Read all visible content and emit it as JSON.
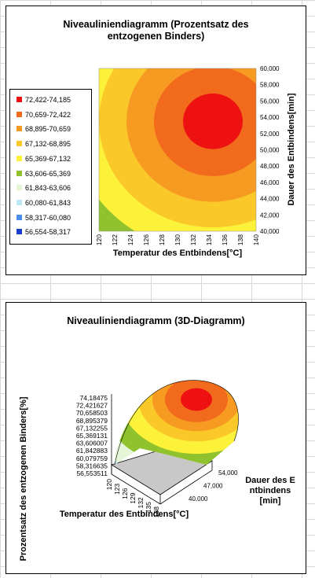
{
  "sheet": {
    "bg": "#ffffff",
    "gridline_color": "#d8d8d8"
  },
  "chart_data": [
    {
      "type": "heatmap",
      "title": "Niveauliniendiagramm (Prozentsatz des entzogenen Binders)",
      "xlabel": "Temperatur des Entbindens[°C]",
      "ylabel": "Dauer des Entbindens[min]",
      "xlim": [
        120,
        140
      ],
      "ylim": [
        40,
        60
      ],
      "x_ticks": [
        "120",
        "122",
        "124",
        "126",
        "128",
        "130",
        "132",
        "134",
        "136",
        "138",
        "140"
      ],
      "y_ticks": [
        "40,000",
        "42,000",
        "44,000",
        "46,000",
        "48,000",
        "50,000",
        "52,000",
        "54,000",
        "56,000",
        "58,000",
        "60,000"
      ],
      "peak": {
        "x": 134.5,
        "y": 53.5,
        "value": 74.18
      },
      "legend_position": "left",
      "levels": [
        {
          "range": "72,422-74,185",
          "color": "#ee1111"
        },
        {
          "range": "70,659-72,422",
          "color": "#f26a1c"
        },
        {
          "range": "68,895-70,659",
          "color": "#f79a22"
        },
        {
          "range": "67,132-68,895",
          "color": "#fbc82a"
        },
        {
          "range": "65,369-67,132",
          "color": "#fdf23a"
        },
        {
          "range": "63,606-65,369",
          "color": "#8fc22c"
        },
        {
          "range": "61,843-63,606",
          "color": "#e4f6d6"
        },
        {
          "range": "60,080-61,843",
          "color": "#bfe6f5"
        },
        {
          "range": "58,317-60,080",
          "color": "#4a8eec"
        },
        {
          "range": "56,554-58,317",
          "color": "#1a3cd0"
        }
      ]
    },
    {
      "type": "surface",
      "title": "Niveauliniendiagramm (3D-Diagramm)",
      "zlabel": "Prozentsatz des entzogenen Binders[%]",
      "xlabel": "Temperatur des Entbindens[°C]",
      "ylabel": "Dauer des Entbindens[min]",
      "z_ticks": [
        "74,18475",
        "72,421627",
        "70,658503",
        "68,895379",
        "67,132255",
        "65,369131",
        "63,606007",
        "61,842883",
        "60,079759",
        "58,316635",
        "56,553511"
      ],
      "x_ticks": [
        "120",
        "123",
        "126",
        "129",
        "132",
        "135",
        "138"
      ],
      "y_ticks": [
        "40,000",
        "47,000",
        "54,000"
      ],
      "colors": [
        "#ee1111",
        "#f26a1c",
        "#f79a22",
        "#fbc82a",
        "#fdf23a",
        "#8fc22c",
        "#e4f6d6",
        "#bfe6f5"
      ],
      "floor_color": "#c8c8c8"
    }
  ]
}
